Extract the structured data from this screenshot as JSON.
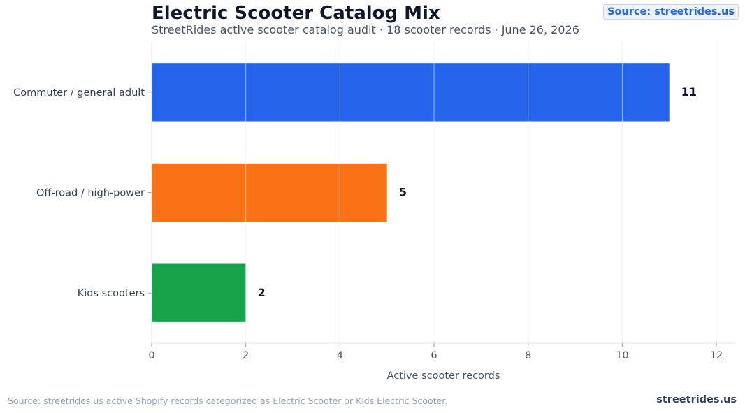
{
  "header": {
    "title": "Electric Scooter Catalog Mix",
    "subtitle": "StreetRides active scooter catalog audit · 18 scooter records · June 26, 2026",
    "source_badge": "Source: streetrides.us"
  },
  "footer": {
    "note": "Source: streetrides.us active Shopify records categorized as Electric Scooter or Kids Electric Scooter.",
    "brand": "streetrides.us"
  },
  "chart_data": {
    "type": "bar",
    "orientation": "horizontal",
    "categories": [
      "Commuter / general adult",
      "Off-road / high-power",
      "Kids scooters"
    ],
    "values": [
      11,
      5,
      2
    ],
    "colors": [
      "#2563eb",
      "#f97316",
      "#16a34a"
    ],
    "xlabel": "Active scooter records",
    "ylabel": "",
    "xlim": [
      0,
      12.4
    ],
    "xticks": [
      0,
      2,
      4,
      6,
      8,
      10,
      12
    ],
    "grid": true
  }
}
